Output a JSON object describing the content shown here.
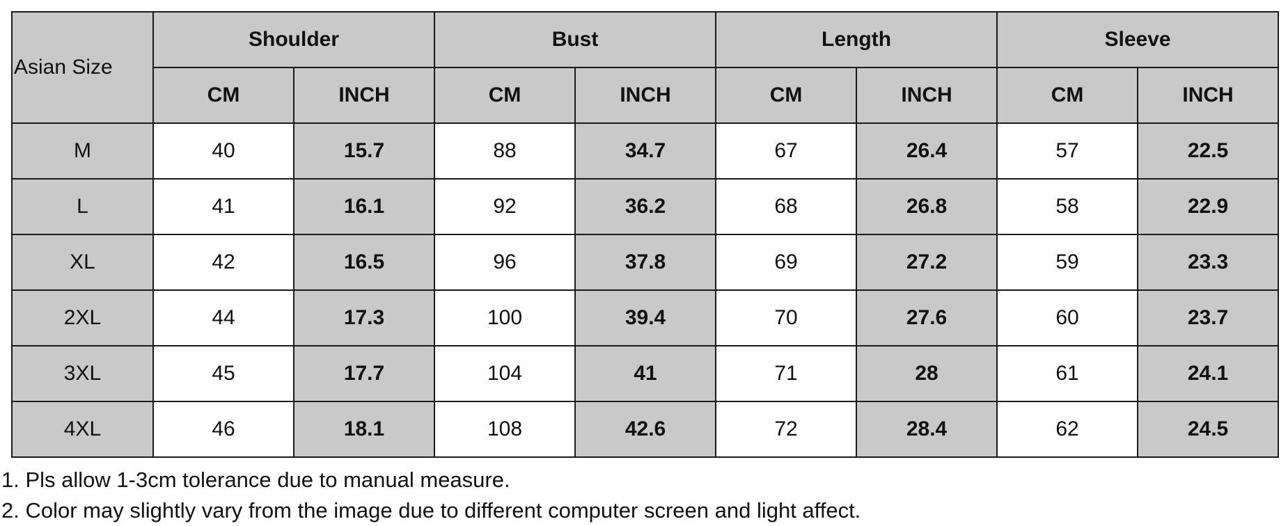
{
  "table": {
    "size_header": "Asian Size",
    "groups": [
      "Shoulder",
      "Bust",
      "Length",
      "Sleeve"
    ],
    "units": [
      "CM",
      "INCH"
    ],
    "rows": [
      {
        "size": "M",
        "values": [
          "40",
          "15.7",
          "88",
          "34.7",
          "67",
          "26.4",
          "57",
          "22.5"
        ]
      },
      {
        "size": "L",
        "values": [
          "41",
          "16.1",
          "92",
          "36.2",
          "68",
          "26.8",
          "58",
          "22.9"
        ]
      },
      {
        "size": "XL",
        "values": [
          "42",
          "16.5",
          "96",
          "37.8",
          "69",
          "27.2",
          "59",
          "23.3"
        ]
      },
      {
        "size": "2XL",
        "values": [
          "44",
          "17.3",
          "100",
          "39.4",
          "70",
          "27.6",
          "60",
          "23.7"
        ]
      },
      {
        "size": "3XL",
        "values": [
          "45",
          "17.7",
          "104",
          "41",
          "71",
          "28",
          "61",
          "24.1"
        ]
      },
      {
        "size": "4XL",
        "values": [
          "46",
          "18.1",
          "108",
          "42.6",
          "72",
          "28.4",
          "62",
          "24.5"
        ]
      }
    ]
  },
  "notes": [
    "1. Pls allow 1-3cm tolerance due to manual measure.",
    "2. Color may slightly vary from the image due to different computer screen and light affect."
  ],
  "colors": {
    "header_bg": "#c9c9c9",
    "cm_bg": "#ffffff",
    "border": "#1a1a1a"
  }
}
